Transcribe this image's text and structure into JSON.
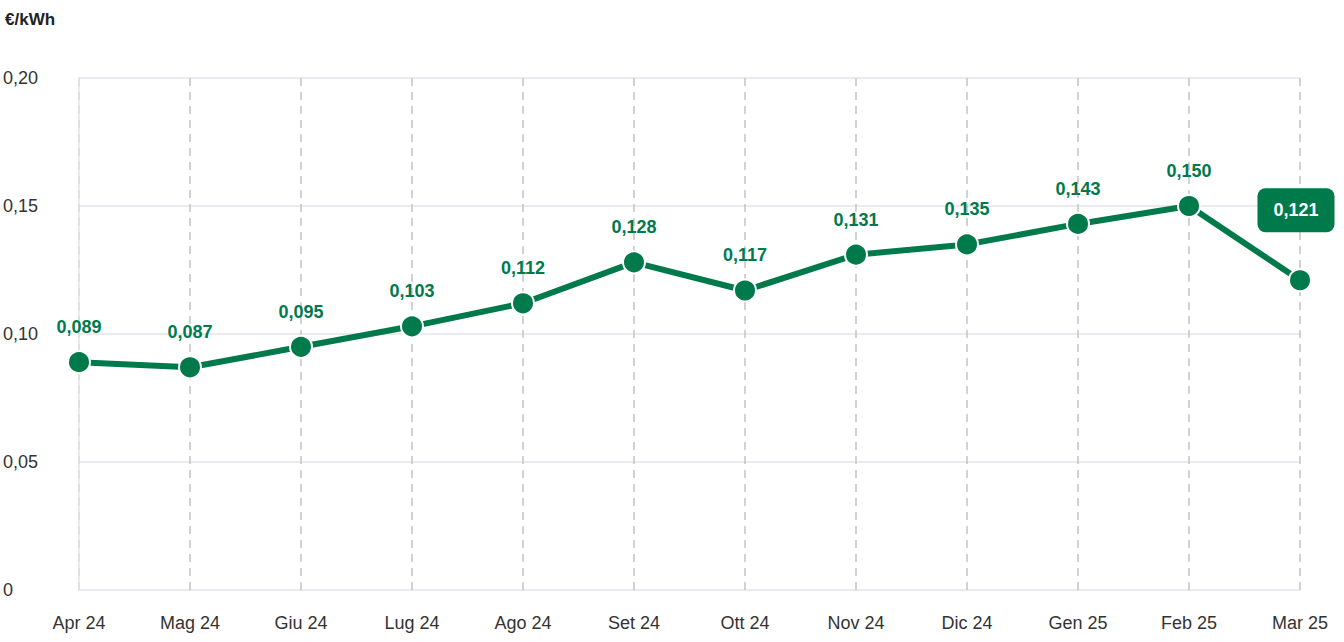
{
  "chart_data": {
    "type": "line",
    "ylabel": "€/kWh",
    "categories": [
      "Apr 24",
      "Mag 24",
      "Giu 24",
      "Lug 24",
      "Ago 24",
      "Set 24",
      "Ott 24",
      "Nov 24",
      "Dic 24",
      "Gen 25",
      "Feb 25",
      "Mar 25"
    ],
    "values": [
      0.089,
      0.087,
      0.095,
      0.103,
      0.112,
      0.128,
      0.117,
      0.131,
      0.135,
      0.143,
      0.15,
      0.121
    ],
    "value_labels": [
      "0,089",
      "0,087",
      "0,095",
      "0,103",
      "0,112",
      "0,128",
      "0,117",
      "0,131",
      "0,135",
      "0,143",
      "0,150",
      "0,121"
    ],
    "color": "#00794b",
    "marker": "circle",
    "ylim": [
      0,
      0.2
    ],
    "yticks": [
      0,
      {
        "value": 0.05,
        "label": "0,05"
      },
      {
        "value": 0.1,
        "label": "0,10"
      },
      {
        "value": 0.15,
        "label": "0,15"
      },
      {
        "value": 0.2,
        "label": "0,20"
      }
    ],
    "grid": true
  }
}
